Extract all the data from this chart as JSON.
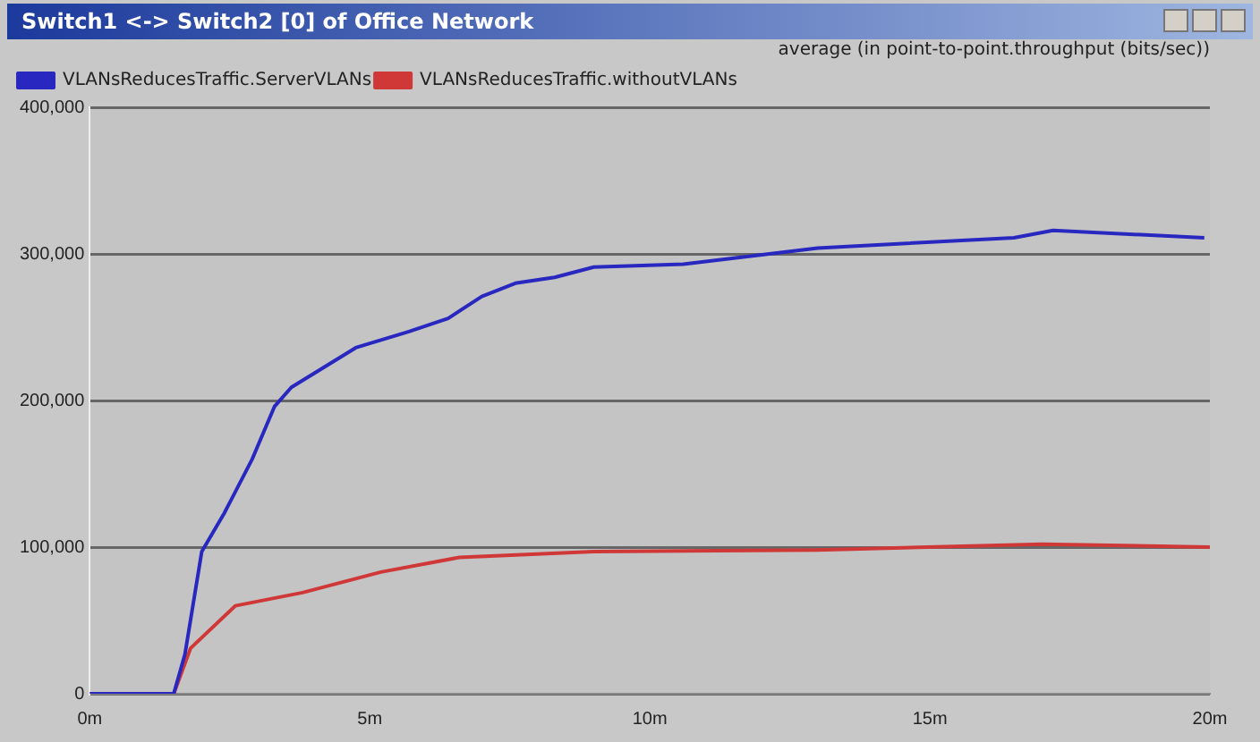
{
  "chart_data": {
    "type": "line",
    "title": "Switch1 <-> Switch2 [0] of Office Network",
    "subtitle": "average (in point-to-point.throughput (bits/sec))",
    "x": [
      0,
      1.5,
      1.7,
      2.0,
      2.4,
      2.9,
      3.3,
      3.6,
      4.75,
      5.7,
      6.4,
      7.0,
      7.6,
      8.3,
      9.0,
      10.6,
      13,
      16.5,
      17.2,
      19.9
    ],
    "series": [
      {
        "name": "VLANsReducesTraffic.ServerVLANs",
        "color": "#2828c0",
        "values": [
          0,
          0,
          27000,
          97000,
          123000,
          160000,
          196000,
          209000,
          236000,
          247000,
          256000,
          271000,
          280000,
          284000,
          291000,
          293000,
          304000,
          311000,
          316000,
          311000
        ]
      },
      {
        "name": "VLANsReducesTraffic.withoutVLANs",
        "color": "#d03838",
        "x": [
          0,
          1.5,
          1.8,
          2.6,
          3.8,
          5.2,
          6.6,
          9,
          13,
          17,
          20
        ],
        "values": [
          0,
          0,
          31000,
          60000,
          69000,
          83000,
          93000,
          97000,
          98000,
          102000,
          100000
        ]
      }
    ],
    "xlim": [
      0,
      20
    ],
    "xticks": [
      {
        "value": 0,
        "label": "0m"
      },
      {
        "value": 5,
        "label": "5m"
      },
      {
        "value": 10,
        "label": "10m"
      },
      {
        "value": 15,
        "label": "15m"
      },
      {
        "value": 20,
        "label": "20m"
      }
    ],
    "ylim": [
      0,
      400000
    ],
    "yticks": [
      {
        "value": 0,
        "label": "0"
      },
      {
        "value": 100000,
        "label": "100,000"
      },
      {
        "value": 200000,
        "label": "200,000"
      },
      {
        "value": 300000,
        "label": "300,000"
      },
      {
        "value": 400000,
        "label": "400,000"
      }
    ],
    "grid": "y",
    "legend": "top left",
    "marker": "none",
    "line_style": "solid"
  }
}
